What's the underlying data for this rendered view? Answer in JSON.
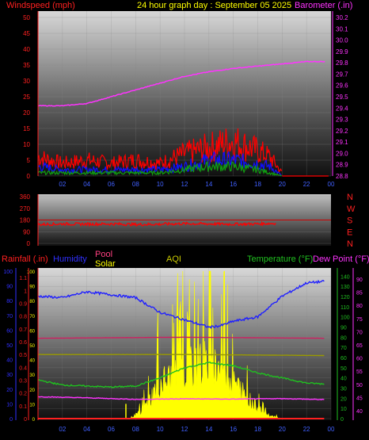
{
  "top": {
    "left_title": "Windspeed (mph)",
    "center_title": "24 hour graph day : September 05 2025",
    "right_title": "Barometer (.in)",
    "colors": {
      "left": "#ff2020",
      "center": "#ffff00",
      "right": "#ff33ff"
    }
  },
  "bottom": {
    "rainfall": "Rainfall (.in)",
    "humidity": "Humidity",
    "pool": "Pool",
    "solar": "Solar",
    "aqi": "AQI",
    "temperature": "Temperature (°F)",
    "dew_point": "Dew Point (°F)",
    "colors": {
      "rainfall": "#ff2020",
      "humidity": "#3030ff",
      "pool": "#ff4080",
      "solar": "#ffff00",
      "aqi": "#cccc00",
      "temperature": "#20c020",
      "dew_point": "#ff33ff"
    }
  },
  "chart_data": [
    {
      "type": "line",
      "panel": "wind-barometer",
      "x_ticks": [
        "02",
        "04",
        "06",
        "08",
        "10",
        "12",
        "14",
        "16",
        "18",
        "20",
        "22",
        "00"
      ],
      "left_axis": {
        "label": "Windspeed (mph)",
        "ticks": [
          0,
          5,
          10,
          15,
          20,
          25,
          30,
          35,
          40,
          45,
          50
        ],
        "ylim": [
          0,
          50
        ]
      },
      "right_axis": {
        "label": "Barometer (.in)",
        "ticks": [
          28.8,
          28.9,
          29,
          29.1,
          29.2,
          29.3,
          29.4,
          29.5,
          29.6,
          29.7,
          29.8,
          29.9,
          30,
          30.1,
          30.2
        ],
        "ylim": [
          28.8,
          30.2
        ]
      },
      "series": [
        {
          "name": "Barometer (.in)",
          "color": "#ff33ff",
          "x": [
            0,
            2,
            4,
            6,
            8,
            10,
            12,
            14,
            16,
            18,
            20,
            22,
            23.5
          ],
          "values": [
            29.42,
            29.42,
            29.44,
            29.5,
            29.56,
            29.62,
            29.68,
            29.72,
            29.75,
            29.77,
            29.79,
            29.81,
            29.81
          ]
        },
        {
          "color": "#ff0000",
          "x": [
            0,
            2,
            4,
            6,
            8,
            10,
            12,
            14,
            16,
            18,
            19,
            20
          ],
          "values": [
            6,
            4,
            5,
            4,
            5,
            4,
            7,
            9,
            11,
            8,
            6,
            1
          ]
        },
        {
          "color": "#1010ff",
          "x": [
            0,
            2,
            4,
            6,
            8,
            10,
            12,
            14,
            16,
            18,
            19,
            20
          ],
          "values": [
            3,
            2,
            2,
            2,
            2,
            2,
            3,
            5,
            5,
            4,
            3,
            0
          ]
        },
        {
          "color": "#10a010",
          "x": [
            0,
            2,
            4,
            6,
            8,
            10,
            12,
            14,
            16,
            18,
            19,
            20
          ],
          "values": [
            1,
            1,
            1,
            1,
            1,
            1,
            2,
            3,
            3,
            2,
            1,
            0
          ]
        }
      ]
    },
    {
      "type": "line",
      "panel": "wind-direction",
      "x_ticks": [],
      "left_axis": {
        "ticks": [
          0,
          90,
          180,
          270,
          360
        ],
        "ylim": [
          0,
          360
        ]
      },
      "right_axis": {
        "ticks": [
          "N",
          "W",
          "S",
          "E",
          "N"
        ]
      },
      "series": [
        {
          "color": "#ff0000",
          "x": [
            0,
            2,
            4,
            6,
            8,
            10,
            12,
            14,
            16,
            18,
            19.5
          ],
          "values": [
            145,
            150,
            148,
            150,
            145,
            148,
            152,
            150,
            148,
            150,
            155
          ]
        }
      ]
    },
    {
      "type": "line",
      "panel": "rain-humidity-temp",
      "x_ticks": [
        "02",
        "04",
        "06",
        "08",
        "10",
        "12",
        "14",
        "16",
        "18",
        "20",
        "22",
        "00"
      ],
      "axes": {
        "humidity": {
          "ticks": [
            0,
            10,
            20,
            30,
            40,
            50,
            60,
            70,
            80,
            90,
            100
          ],
          "ylim": [
            0,
            100
          ]
        },
        "rainfall": {
          "ticks": [
            0,
            0.1,
            0.2,
            0.3,
            0.4,
            0.5,
            0.6,
            0.7,
            0.8,
            0.9,
            1,
            1.1
          ],
          "ylim": [
            0,
            1.15
          ]
        },
        "solar": {
          "ticks": [
            0,
            10,
            20,
            30,
            40,
            50,
            60,
            70,
            80,
            90,
            100
          ],
          "ylim": [
            0,
            100
          ]
        },
        "temperature": {
          "ticks": [
            0,
            10,
            20,
            30,
            40,
            50,
            60,
            70,
            80,
            90,
            100,
            110,
            120,
            130,
            140
          ],
          "ylim": [
            0,
            145
          ]
        },
        "dew_point": {
          "ticks": [
            40,
            45,
            50,
            55,
            60,
            65,
            70,
            75,
            80,
            85,
            90
          ],
          "ylim": [
            37,
            93
          ]
        }
      },
      "series": [
        {
          "name": "Humidity",
          "axis": "humidity",
          "color": "#2020ff",
          "x": [
            0,
            2,
            4,
            6,
            8,
            10,
            12,
            14,
            15,
            16,
            18,
            20,
            22,
            23.5
          ],
          "values": [
            83,
            82,
            86,
            84,
            82,
            72,
            67,
            62,
            63,
            66,
            69,
            83,
            92,
            93
          ]
        },
        {
          "name": "Temperature (°F)",
          "axis": "temperature",
          "color": "#20c020",
          "x": [
            0,
            2,
            4,
            6,
            8,
            10,
            12,
            14,
            16,
            18,
            20,
            22,
            23.5
          ],
          "values": [
            38,
            33,
            32,
            31,
            32,
            40,
            50,
            55,
            52,
            45,
            40,
            35,
            34
          ]
        },
        {
          "name": "Dew Point (°F)",
          "axis": "dew_point",
          "color": "#ff33ff",
          "x": [
            0,
            4,
            8,
            12,
            16,
            20,
            23.5
          ],
          "values": [
            45.3,
            44.9,
            44.3,
            44.5,
            44.4,
            44.6,
            44.2
          ]
        },
        {
          "name": "Pool",
          "axis": "temperature",
          "color": "#cc2060",
          "x": [
            0,
            12,
            23.5
          ],
          "values": [
            79,
            80,
            79
          ]
        },
        {
          "name": "AQI",
          "axis": "temperature",
          "color": "#999900",
          "x": [
            0,
            12,
            23.5
          ],
          "values": [
            63,
            63,
            62
          ]
        },
        {
          "name": "Solar",
          "axis": "solar",
          "color": "#ffff00",
          "fill": true,
          "x": [
            0,
            7.5,
            8.5,
            9,
            10,
            11,
            12,
            13,
            14,
            15,
            16,
            17,
            18,
            19,
            20,
            23.5
          ],
          "values": [
            0,
            0,
            8,
            18,
            40,
            45,
            55,
            60,
            62,
            58,
            42,
            25,
            12,
            3,
            0,
            0
          ]
        },
        {
          "name": "Rainfall (.in)",
          "axis": "rainfall",
          "color": "#ff2020",
          "x": [
            0,
            23.5
          ],
          "values": [
            0,
            0
          ]
        }
      ]
    }
  ]
}
